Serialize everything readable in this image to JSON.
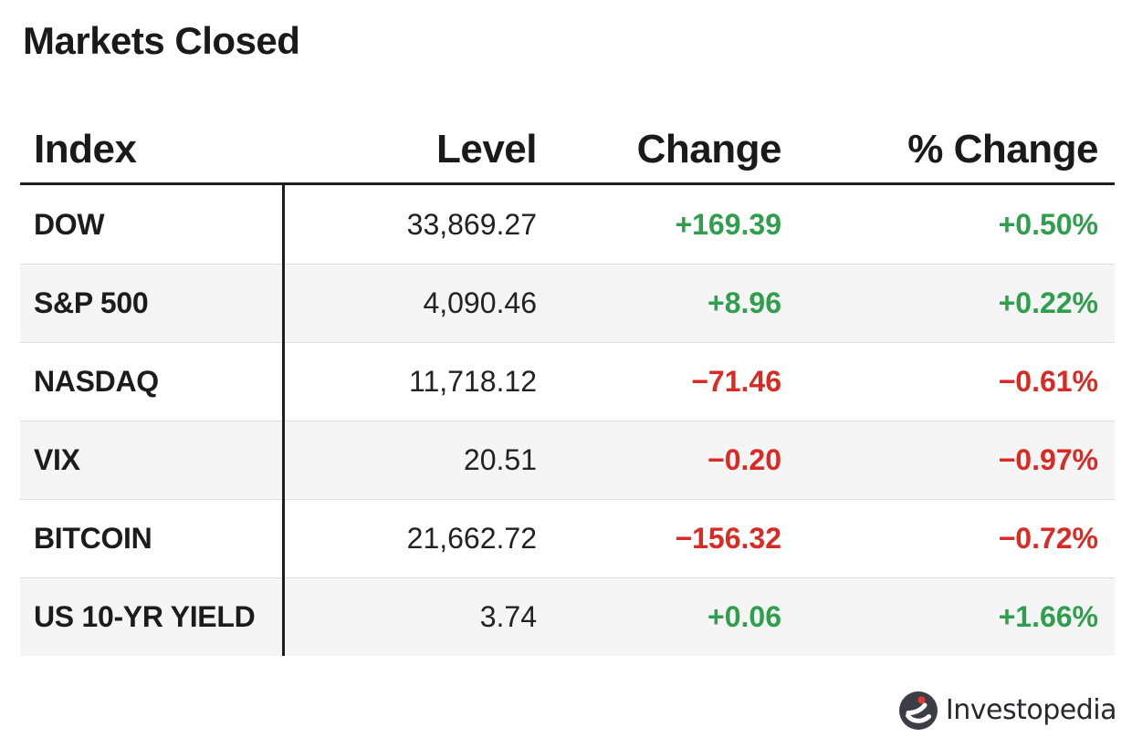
{
  "title": "Markets Closed",
  "chart_data": {
    "type": "table",
    "title": "Markets Closed",
    "columns": [
      "Index",
      "Level",
      "Change",
      "% Change"
    ],
    "rows": [
      {
        "index": "DOW",
        "level": "33,869.27",
        "change": "+169.39",
        "pct_change": "+0.50%",
        "direction": "up"
      },
      {
        "index": "S&P 500",
        "level": "4,090.46",
        "change": "+8.96",
        "pct_change": "+0.22%",
        "direction": "up"
      },
      {
        "index": "NASDAQ",
        "level": "11,718.12",
        "change": "−71.46",
        "pct_change": "−0.61%",
        "direction": "down"
      },
      {
        "index": "VIX",
        "level": "20.51",
        "change": "−0.20",
        "pct_change": "−0.97%",
        "direction": "down"
      },
      {
        "index": "BITCOIN",
        "level": "21,662.72",
        "change": "−156.32",
        "pct_change": "−0.72%",
        "direction": "down"
      },
      {
        "index": "US 10-YR YIELD",
        "level": "3.74",
        "change": "+0.06",
        "pct_change": "+1.66%",
        "direction": "up"
      }
    ],
    "layout": {
      "alternating_rows": true,
      "value_alignment": "right"
    }
  },
  "colors": {
    "positive": "#2F9E4D",
    "negative": "#D92B25",
    "header_text": "#1A1A1A",
    "body_text": "#1C1C1C",
    "row_alt_bg": "#F5F5F6",
    "rule_dark": "#1E1E1E",
    "rule_light": "#DEDEDE",
    "logo_circle": "#3D3D45",
    "logo_dot": "#E23B32",
    "logo_text": "#28282E"
  },
  "footer": {
    "brand": "Investopedia",
    "logo_icon": "investopedia-logo-icon"
  }
}
